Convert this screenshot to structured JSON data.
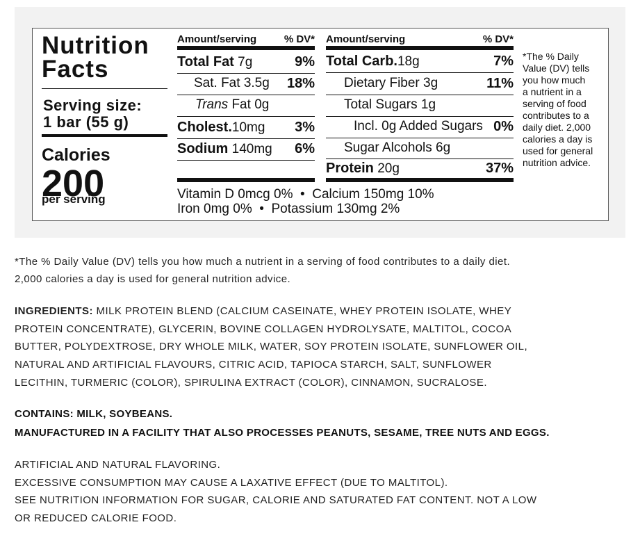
{
  "label": {
    "title_lines": [
      "Nutrition",
      "Facts"
    ],
    "serving_label": "Serving size:",
    "serving_size": "1 bar (55 g)",
    "calories_label": "Calories",
    "calories_value": "200",
    "per_serving": "per serving",
    "left_header": {
      "amount": "Amount/serving",
      "dv": "% DV*"
    },
    "left_rows": [
      {
        "name": "Total Fat",
        "amount": "7g",
        "dv": "9%"
      },
      {
        "name": "Sat. Fat",
        "amount": "3.5g",
        "dv": "18%"
      },
      {
        "italic": "Trans",
        "name": "Fat",
        "amount": "0g"
      },
      {
        "name": "Cholest.",
        "amount": "10mg",
        "dv": "3%"
      },
      {
        "name": "Sodium",
        "amount": "140mg",
        "dv": "6%"
      }
    ],
    "right_header": {
      "amount": "Amount/serving",
      "dv": "% DV*"
    },
    "right_rows": [
      {
        "name": "Total Carb.",
        "amount": "18g",
        "dv": "7%"
      },
      {
        "name": "Dietary Fiber",
        "amount": "3g",
        "dv": "11%"
      },
      {
        "name": "Total Sugars",
        "amount": "1g"
      },
      {
        "name": "Incl. 0g Added Sugars",
        "dv": "0%"
      },
      {
        "name": "Sugar Alcohols",
        "amount": "6g"
      },
      {
        "name": "Protein",
        "amount": "20g",
        "dv": "37%"
      }
    ],
    "vitamins": [
      "Vitamin D 0mcg 0%  •  Calcium 150mg 10%",
      "Iron 0mg 0%  •  Potassium 130mg 2%"
    ],
    "footnote": [
      "*The % Daily",
      "Value (DV) tells",
      "you how much",
      "a nutrient in a",
      "serving of food",
      "contributes to a",
      "daily diet. 2,000",
      "calories a day is",
      "used for general",
      "nutrition advice."
    ]
  },
  "dv_note": [
    "*The % Daily Value (DV) tells you how much a nutrient in a serving of food contributes to a daily diet.",
    "2,000 calories a day is used for general nutrition advice."
  ],
  "ingredients": {
    "label": "INGREDIENTS:",
    "lines": [
      " MILK PROTEIN BLEND (CALCIUM CASEINATE, WHEY PROTEIN ISOLATE, WHEY",
      "PROTEIN CONCENTRATE), GLYCERIN, BOVINE COLLAGEN HYDROLYSATE, MALTITOL, COCOA",
      "BUTTER, POLYDEXTROSE, DRY WHOLE MILK, WATER, SOY PROTEIN ISOLATE, SUNFLOWER OIL,",
      "NATURAL AND ARTIFICIAL FLAVOURS, CITRIC ACID, TAPIOCA STARCH, SALT, SUNFLOWER",
      "LECITHIN, TURMERIC (COLOR), SPIRULINA EXTRACT (COLOR), CINNAMON, SUCRALOSE."
    ]
  },
  "allergens": [
    "CONTAINS: MILK, SOYBEANS.",
    "MANUFACTURED IN A FACILITY THAT ALSO PROCESSES PEANUTS, SESAME, TREE NUTS AND EGGS."
  ],
  "notes": [
    "ARTIFICIAL AND NATURAL FLAVORING.",
    "EXCESSIVE CONSUMPTION MAY CAUSE A LAXATIVE EFFECT (DUE TO MALTITOL).",
    "SEE NUTRITION INFORMATION FOR SUGAR, CALORIE AND SATURATED FAT CONTENT. NOT A LOW",
    "OR REDUCED CALORIE FOOD."
  ]
}
